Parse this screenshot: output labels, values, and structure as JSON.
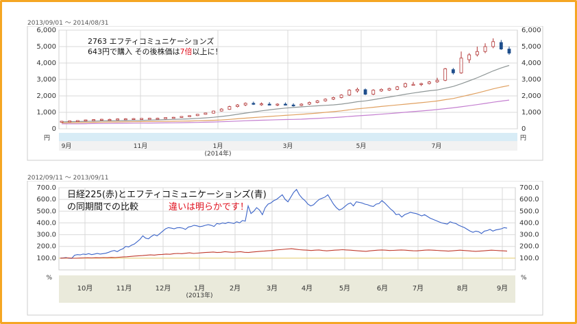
{
  "colors": {
    "orange_border": "#f5a623",
    "red": "#e0101e",
    "blue": "#3a63c8",
    "grid": "#d9d9d9",
    "plot_bg": "#ffffff",
    "band": "#d8ecf6",
    "axis_band": "#eaeadb"
  },
  "chart_data": [
    {
      "type": "candlestick",
      "date_range": "2013/09/01 ～ 2014/08/31",
      "yticks": [
        "6,000",
        "5,000",
        "4,000",
        "3,000",
        "2,000",
        "1,000",
        "0"
      ],
      "ylim": [
        0,
        6000
      ],
      "y_unit": "円",
      "x_tick_labels": [
        "9月",
        "11月",
        "1月",
        "3月",
        "5月",
        "7月"
      ],
      "year_label": "(2014年)",
      "annotation": {
        "line1": "2763 エフティコミュニケーションズ",
        "line2_a": "643円で購入 その後株価は",
        "line2_b": "7倍",
        "line2_c": "以上に！"
      },
      "candles_x": [
        0,
        3,
        6,
        9,
        12,
        15,
        18,
        21,
        24,
        27,
        30,
        33,
        36,
        39,
        42,
        45,
        48,
        51,
        54,
        57,
        60,
        63,
        66,
        69,
        72,
        75,
        78,
        81,
        84,
        87,
        90,
        93,
        96,
        99,
        102,
        105,
        108,
        111,
        114,
        117,
        120,
        123,
        126,
        129,
        132,
        135,
        138,
        141,
        144,
        147,
        150,
        153,
        156,
        159,
        162,
        165,
        168,
        171,
        174,
        177,
        180,
        183,
        186,
        189,
        192,
        195,
        198,
        201,
        204,
        207,
        210,
        213,
        216,
        219,
        222,
        225,
        228,
        231,
        234,
        237,
        240,
        243,
        246,
        249,
        252
      ],
      "candles": [
        [
          420,
          470,
          400,
          460
        ],
        [
          450,
          490,
          430,
          480
        ],
        [
          470,
          520,
          450,
          500
        ],
        [
          490,
          560,
          470,
          540
        ],
        [
          520,
          580,
          500,
          560
        ],
        [
          540,
          600,
          520,
          580
        ],
        [
          560,
          610,
          540,
          570
        ],
        [
          570,
          620,
          550,
          600
        ],
        [
          580,
          640,
          560,
          610
        ],
        [
          590,
          650,
          570,
          620
        ],
        [
          600,
          650,
          580,
          630
        ],
        [
          610,
          660,
          590,
          640
        ],
        [
          620,
          670,
          600,
          640
        ],
        [
          640,
          690,
          620,
          680
        ],
        [
          660,
          720,
          640,
          700
        ],
        [
          690,
          760,
          670,
          750
        ],
        [
          740,
          820,
          720,
          800
        ],
        [
          800,
          900,
          780,
          880
        ],
        [
          880,
          980,
          860,
          960
        ],
        [
          950,
          1100,
          930,
          1080
        ],
        [
          1080,
          1250,
          1050,
          1200
        ],
        [
          1180,
          1400,
          1150,
          1350
        ],
        [
          1350,
          1500,
          1300,
          1450
        ],
        [
          1450,
          1600,
          1380,
          1550
        ],
        [
          1550,
          1650,
          1450,
          1500
        ],
        [
          1480,
          1600,
          1400,
          1520
        ],
        [
          1500,
          1620,
          1420,
          1450
        ],
        [
          1450,
          1550,
          1380,
          1500
        ],
        [
          1500,
          1600,
          1420,
          1480
        ],
        [
          1450,
          1550,
          1350,
          1420
        ],
        [
          1420,
          1550,
          1380,
          1500
        ],
        [
          1500,
          1650,
          1450,
          1600
        ],
        [
          1600,
          1750,
          1550,
          1700
        ],
        [
          1700,
          1850,
          1650,
          1800
        ],
        [
          1800,
          1950,
          1750,
          1900
        ],
        [
          1900,
          2100,
          1850,
          2050
        ],
        [
          2050,
          2400,
          2000,
          2350
        ],
        [
          2300,
          2500,
          2200,
          2400
        ],
        [
          2380,
          2450,
          2050,
          2100
        ],
        [
          2100,
          2400,
          2050,
          2350
        ],
        [
          2300,
          2450,
          2250,
          2400
        ],
        [
          2350,
          2500,
          2300,
          2450
        ],
        [
          2400,
          2600,
          2350,
          2550
        ],
        [
          2550,
          2800,
          2500,
          2750
        ],
        [
          2700,
          2850,
          2650,
          2700
        ],
        [
          2700,
          2800,
          2600,
          2750
        ],
        [
          2750,
          2900,
          2700,
          2850
        ],
        [
          2850,
          3100,
          2800,
          2950
        ],
        [
          2950,
          3700,
          2900,
          3650
        ],
        [
          3600,
          3700,
          3300,
          3400
        ],
        [
          3400,
          4700,
          3350,
          4300
        ],
        [
          4200,
          4600,
          4000,
          4500
        ],
        [
          4500,
          5000,
          4400,
          4700
        ],
        [
          4700,
          5200,
          4600,
          5000
        ],
        [
          5000,
          5500,
          4900,
          5300
        ],
        [
          5250,
          5400,
          4800,
          4850
        ],
        [
          4850,
          5000,
          4500,
          4600
        ]
      ]
    },
    {
      "type": "line",
      "date_range": "2012/09/11 ～ 2013/09/11",
      "yticks": [
        "700.0",
        "600.0",
        "500.0",
        "400.0",
        "300.0",
        "200.0",
        "100.0"
      ],
      "ylim": [
        0,
        700
      ],
      "y_unit": "%",
      "x_tick_labels": [
        "10月",
        "11月",
        "12月",
        "1月",
        "2月",
        "3月",
        "4月",
        "5月",
        "6月",
        "7月",
        "8月",
        "9月"
      ],
      "year_label": "(2013年)",
      "annotation": {
        "line1": "日経225(赤)とエフティコミュニケーションズ(青)",
        "line2_a": "の同期間での比較",
        "line2_b": "違いは明らかです！"
      },
      "series": [
        {
          "name": "エフティコミュニケーションズ",
          "color": "#3a63c8",
          "values": [
            100,
            102,
            105,
            100,
            98,
            125,
            130,
            128,
            135,
            132,
            138,
            130,
            135,
            140,
            135,
            138,
            142,
            150,
            160,
            165,
            155,
            170,
            180,
            200,
            195,
            210,
            220,
            240,
            260,
            290,
            270,
            265,
            285,
            300,
            290,
            310,
            330,
            350,
            360,
            355,
            350,
            358,
            360,
            355,
            345,
            365,
            370,
            380,
            375,
            368,
            372,
            380,
            385,
            380,
            370,
            395,
            390,
            400,
            395,
            405,
            400,
            395,
            410,
            400,
            420,
            415,
            545,
            480,
            500,
            530,
            510,
            470,
            530,
            560,
            570,
            590,
            600,
            620,
            640,
            600,
            580,
            620,
            660,
            685,
            640,
            610,
            590,
            560,
            545,
            555,
            580,
            600,
            610,
            620,
            640,
            600,
            560,
            530,
            510,
            520,
            540,
            560,
            570,
            545,
            580,
            575,
            570,
            560,
            555,
            545,
            540,
            560,
            565,
            590,
            570,
            545,
            520,
            500,
            470,
            475,
            450,
            470,
            480,
            490,
            485,
            480,
            470,
            460,
            470,
            455,
            440,
            430,
            420,
            410,
            400,
            395,
            390,
            410,
            400,
            395,
            380,
            370,
            360,
            345,
            330,
            320,
            330,
            325,
            310,
            330,
            335,
            345,
            330,
            340,
            345,
            350,
            360,
            355
          ]
        },
        {
          "name": "日経225",
          "color": "#c0392b",
          "values": [
            100,
            101,
            102,
            100,
            99,
            101,
            102,
            103,
            102,
            104,
            103,
            105,
            104,
            106,
            105,
            108,
            110,
            112,
            115,
            118,
            120,
            122,
            125,
            128,
            126,
            130,
            132,
            135,
            133,
            138,
            140,
            138,
            142,
            145,
            140,
            143,
            145,
            148,
            150,
            152,
            148,
            150,
            155,
            152,
            150,
            153,
            155,
            150,
            148,
            152,
            155,
            158,
            160,
            163,
            165,
            170,
            172,
            175,
            178,
            180,
            176,
            172,
            170,
            168,
            165,
            168,
            170,
            165,
            162,
            165,
            168,
            170,
            172,
            170,
            168,
            165,
            162,
            160,
            158,
            162,
            165,
            168,
            170,
            168,
            165,
            166,
            168,
            170,
            168,
            165,
            163,
            162,
            165,
            168,
            170,
            168,
            166,
            164,
            162,
            160,
            162,
            165,
            168,
            165,
            163,
            160,
            158,
            160,
            162,
            165,
            168,
            166,
            164,
            162,
            160
          ]
        }
      ],
      "baseline": 100
    }
  ]
}
